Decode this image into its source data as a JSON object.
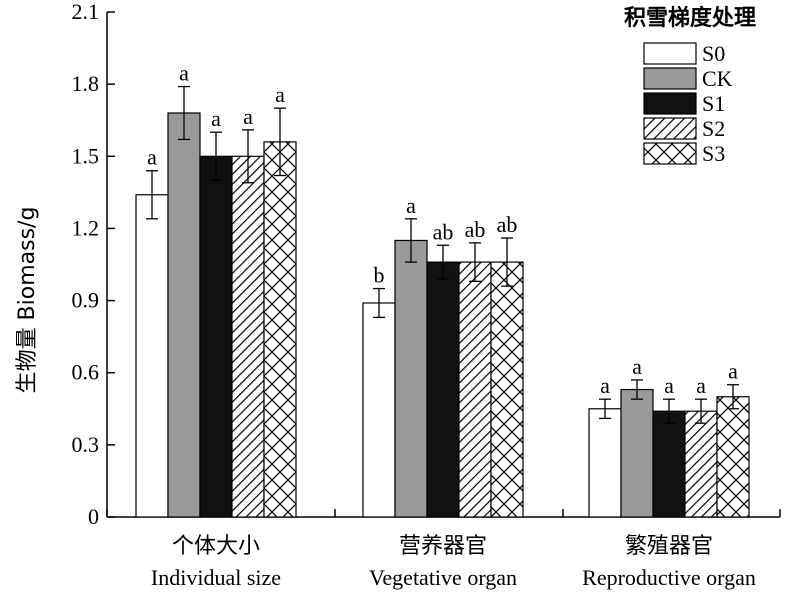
{
  "chart_data": {
    "type": "bar",
    "ylabel": "生物量 Biomass/g",
    "ylim": [
      0,
      2.1
    ],
    "yticks": [
      "0",
      "0.3",
      "0.6",
      "0.9",
      "1.2",
      "1.5",
      "1.8",
      "2.1"
    ],
    "categories": [
      {
        "zh": "个体大小",
        "en": "Individual size"
      },
      {
        "zh": "营养器官",
        "en": "Vegetative organ"
      },
      {
        "zh": "繁殖器官",
        "en": "Reproductive organ"
      }
    ],
    "legend": {
      "title": "积雪梯度处理",
      "position": "top-right"
    },
    "series": [
      {
        "name": "S0",
        "fill": "white",
        "color": "#ffffff",
        "values": [
          1.34,
          0.89,
          0.45
        ],
        "errors": [
          0.1,
          0.06,
          0.04
        ],
        "labels": [
          "a",
          "b",
          "a"
        ]
      },
      {
        "name": "CK",
        "fill": "gray",
        "color": "#999999",
        "values": [
          1.68,
          1.15,
          0.53
        ],
        "errors": [
          0.11,
          0.09,
          0.04
        ],
        "labels": [
          "a",
          "a",
          "a"
        ]
      },
      {
        "name": "S1",
        "fill": "black",
        "color": "#111111",
        "values": [
          1.5,
          1.06,
          0.44
        ],
        "errors": [
          0.1,
          0.07,
          0.05
        ],
        "labels": [
          "a",
          "ab",
          "a"
        ]
      },
      {
        "name": "S2",
        "fill": "diagonal",
        "color": "#ffffff",
        "values": [
          1.5,
          1.06,
          0.44
        ],
        "errors": [
          0.11,
          0.08,
          0.05
        ],
        "labels": [
          "a",
          "ab",
          "a"
        ]
      },
      {
        "name": "S3",
        "fill": "crosshatch",
        "color": "#ffffff",
        "values": [
          1.56,
          1.06,
          0.5
        ],
        "errors": [
          0.14,
          0.1,
          0.05
        ],
        "labels": [
          "a",
          "ab",
          "a"
        ]
      }
    ]
  }
}
